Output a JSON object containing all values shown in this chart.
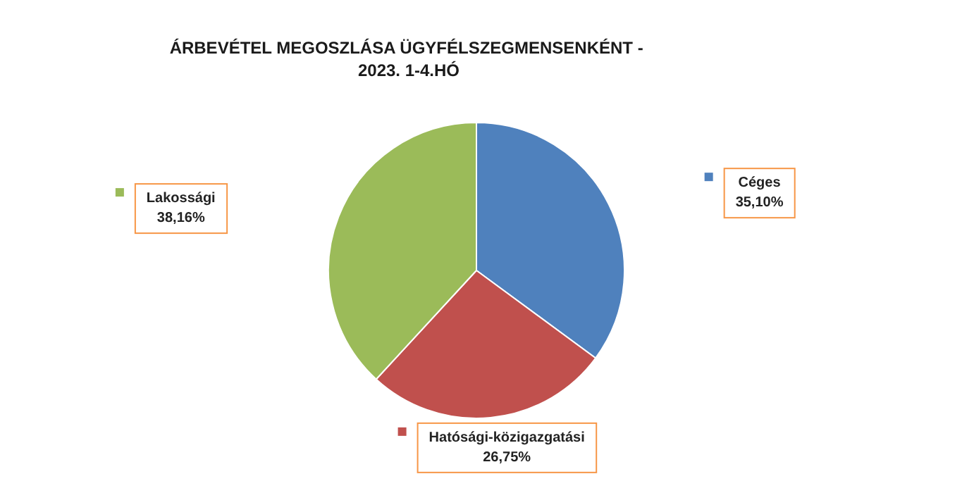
{
  "chart_data": {
    "type": "pie",
    "title": "ÁRBEVÉTEL MEGOSZLÁSA ÜGYFÉLSZEGMENSENKÉNT - 2023. 1-4.HÓ",
    "categories": [
      "Céges",
      "Hatósági-közigazgatási",
      "Lakossági"
    ],
    "values": [
      35.1,
      26.75,
      38.16
    ],
    "colors": [
      "#4f81bd",
      "#c0504d",
      "#9bbb59"
    ],
    "value_labels": [
      "35,10%",
      "26,75%",
      "38,16%"
    ],
    "legend": "bottom left"
  }
}
